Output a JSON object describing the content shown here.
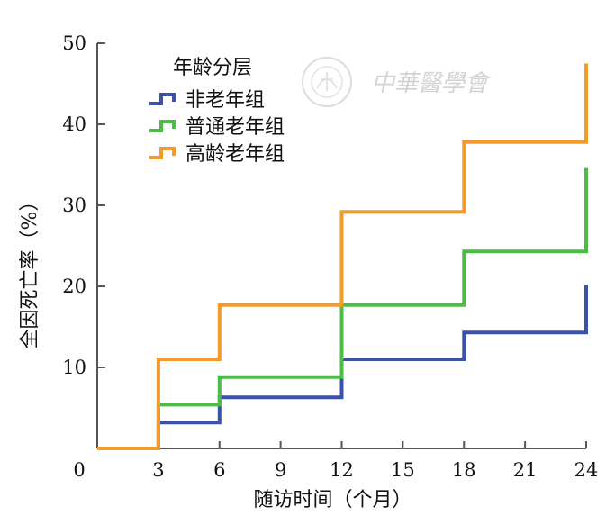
{
  "chart_data": {
    "type": "line",
    "step": true,
    "xlabel": "随访时间（个月）",
    "ylabel": "全因死亡率（%）",
    "xlim": [
      0,
      24
    ],
    "ylim": [
      0,
      50
    ],
    "x_ticks": [
      3,
      6,
      9,
      12,
      15,
      18,
      21,
      24
    ],
    "y_ticks": [
      10,
      20,
      30,
      40,
      50
    ],
    "origin_label": "0",
    "grid": false,
    "legend": {
      "title": "年龄分层",
      "position": "top-left"
    },
    "series": [
      {
        "name": "非老年组",
        "color": "#3a52a8",
        "points": [
          [
            0,
            0
          ],
          [
            3,
            0
          ],
          [
            3,
            3.2
          ],
          [
            6,
            3.2
          ],
          [
            6,
            6.3
          ],
          [
            12,
            6.3
          ],
          [
            12,
            11.0
          ],
          [
            18,
            11.0
          ],
          [
            18,
            14.3
          ],
          [
            24,
            14.3
          ],
          [
            24,
            20.2
          ]
        ]
      },
      {
        "name": "普通老年组",
        "color": "#4cbb47",
        "points": [
          [
            0,
            0
          ],
          [
            3,
            0
          ],
          [
            3,
            5.4
          ],
          [
            6,
            5.4
          ],
          [
            6,
            8.8
          ],
          [
            12,
            8.8
          ],
          [
            12,
            17.7
          ],
          [
            18,
            17.7
          ],
          [
            18,
            24.3
          ],
          [
            24,
            24.3
          ],
          [
            24,
            34.6
          ]
        ]
      },
      {
        "name": "高龄老年组",
        "color": "#f39a2c",
        "points": [
          [
            0,
            0
          ],
          [
            3,
            0
          ],
          [
            3,
            11.0
          ],
          [
            6,
            11.0
          ],
          [
            6,
            17.7
          ],
          [
            12,
            17.7
          ],
          [
            12,
            29.2
          ],
          [
            18,
            29.2
          ],
          [
            18,
            37.8
          ],
          [
            24,
            37.8
          ],
          [
            24,
            47.5
          ]
        ]
      }
    ]
  },
  "watermark": {
    "text": "中華醫學會"
  }
}
